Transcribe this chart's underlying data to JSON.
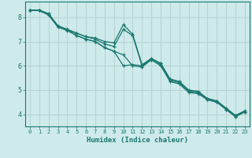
{
  "line1_x": [
    0,
    1,
    2,
    3,
    4,
    5,
    6,
    7,
    8,
    9,
    10,
    11,
    12,
    13,
    14,
    15,
    16,
    17,
    18,
    19,
    20,
    21,
    22,
    23
  ],
  "line1_y": [
    8.3,
    8.3,
    8.15,
    7.65,
    7.5,
    7.35,
    7.2,
    7.15,
    7.0,
    6.95,
    7.7,
    7.3,
    6.05,
    6.3,
    6.1,
    5.45,
    5.35,
    5.0,
    4.95,
    4.65,
    4.55,
    4.25,
    3.95,
    4.15
  ],
  "line2_x": [
    0,
    1,
    2,
    3,
    4,
    5,
    6,
    7,
    8,
    9,
    10,
    11,
    12,
    13,
    14,
    15,
    16,
    17,
    18,
    19,
    20,
    21,
    22,
    23
  ],
  "line2_y": [
    8.3,
    8.3,
    8.15,
    7.65,
    7.5,
    7.35,
    7.2,
    7.1,
    6.9,
    6.8,
    7.5,
    7.25,
    6.0,
    6.25,
    6.05,
    5.4,
    5.3,
    4.95,
    4.9,
    4.6,
    4.5,
    4.2,
    3.9,
    4.1
  ],
  "line3_x": [
    0,
    1,
    2,
    3,
    4,
    5,
    6,
    7,
    8,
    9,
    10,
    11,
    12,
    13,
    14,
    15,
    16,
    17,
    18,
    19,
    20,
    21,
    22,
    23
  ],
  "line3_y": [
    8.28,
    8.28,
    8.1,
    7.6,
    7.45,
    7.25,
    7.1,
    7.0,
    6.75,
    6.6,
    6.0,
    6.05,
    6.0,
    6.3,
    6.1,
    5.45,
    5.35,
    4.95,
    4.9,
    4.65,
    4.55,
    4.25,
    3.95,
    4.1
  ],
  "line4_x": [
    0,
    1,
    2,
    3,
    4,
    5,
    6,
    7,
    8,
    9,
    10,
    11,
    12,
    13,
    14,
    15,
    16,
    17,
    18,
    19,
    20,
    21,
    22,
    23
  ],
  "line4_y": [
    8.28,
    8.28,
    8.1,
    7.6,
    7.5,
    7.25,
    7.1,
    7.0,
    6.75,
    6.6,
    6.45,
    6.0,
    5.95,
    6.25,
    6.0,
    5.35,
    5.25,
    4.9,
    4.85,
    4.6,
    4.5,
    4.2,
    3.9,
    4.1
  ],
  "color": "#1a7870",
  "bg_color": "#ceeaea",
  "grid_color": "#b8d4d4",
  "xlabel": "Humidex (Indice chaleur)",
  "ylim": [
    3.5,
    8.65
  ],
  "xlim": [
    -0.5,
    23.5
  ],
  "yticks": [
    4,
    5,
    6,
    7,
    8
  ],
  "xticks": [
    0,
    1,
    2,
    3,
    4,
    5,
    6,
    7,
    8,
    9,
    10,
    11,
    12,
    13,
    14,
    15,
    16,
    17,
    18,
    19,
    20,
    21,
    22,
    23
  ]
}
